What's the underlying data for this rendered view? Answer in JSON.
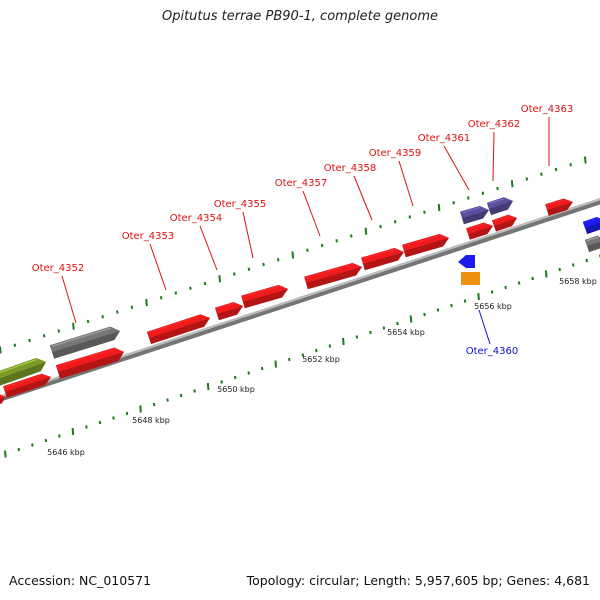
{
  "title": "Opitutus terrae PB90-1, complete genome",
  "footer": {
    "accession": "Accession: NC_010571",
    "summary": "Topology: circular; Length: 5,957,605 bp; Genes: 4,681"
  },
  "colors": {
    "backbone": "#8a8a8a",
    "tick": "#1f7a1f",
    "forward_gene": "#ee1c1c",
    "reverse_gene": "#1c1cee",
    "label_red": "#dd1111",
    "label_blue": "#1111cc",
    "grey_feature": "#777777",
    "olive_feature": "#7a9a2a",
    "purple_feature": "#5a4f9a",
    "orange_feature": "#f09010"
  },
  "scale_labels": [
    "5646 kbp",
    "5648 kbp",
    "5650 kbp",
    "5652 kbp",
    "5654 kbp",
    "5656 kbp",
    "5658 kbp"
  ],
  "gene_labels": [
    {
      "text": "Oter_4352",
      "color": "red"
    },
    {
      "text": "Oter_4353",
      "color": "red"
    },
    {
      "text": "Oter_4354",
      "color": "red"
    },
    {
      "text": "Oter_4355",
      "color": "red"
    },
    {
      "text": "Oter_4357",
      "color": "red"
    },
    {
      "text": "Oter_4358",
      "color": "red"
    },
    {
      "text": "Oter_4359",
      "color": "red"
    },
    {
      "text": "Oter_4361",
      "color": "red"
    },
    {
      "text": "Oter_4362",
      "color": "red"
    },
    {
      "text": "Oter_4363",
      "color": "red"
    },
    {
      "text": "Oter_4360",
      "color": "blue"
    }
  ]
}
